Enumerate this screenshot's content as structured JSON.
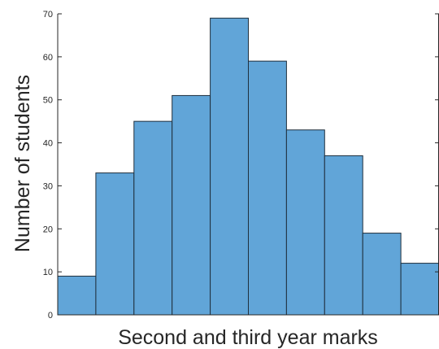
{
  "chart_data": {
    "type": "bar",
    "title": "",
    "xlabel": "Second and third year marks",
    "ylabel": "Number of students",
    "ylim": [
      0,
      70
    ],
    "yticks": [
      0,
      10,
      20,
      30,
      40,
      50,
      60,
      70
    ],
    "values": [
      9,
      33,
      45,
      51,
      69,
      59,
      43,
      37,
      19,
      12
    ],
    "colors": {
      "bar_fill": "#61a5d8",
      "bar_edge": "#1f2f3d",
      "axis": "#262626"
    },
    "grid": false,
    "legend": "none"
  }
}
